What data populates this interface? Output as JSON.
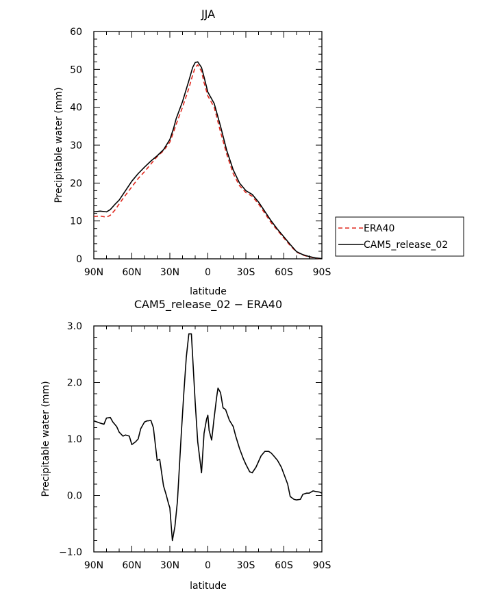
{
  "chart_data": [
    {
      "type": "line",
      "title": "JJA",
      "xlabel": "latitude",
      "ylabel": "Precipitable water (mm)",
      "xlim": [
        -90,
        90
      ],
      "ylim": [
        0,
        60
      ],
      "x_ticks": [
        {
          "value": -90,
          "label": "90N"
        },
        {
          "value": -60,
          "label": "60N"
        },
        {
          "value": -30,
          "label": "30N"
        },
        {
          "value": 0,
          "label": "0"
        },
        {
          "value": 30,
          "label": "30S"
        },
        {
          "value": 60,
          "label": "60S"
        },
        {
          "value": 90,
          "label": "90S"
        }
      ],
      "y_ticks": [
        0,
        10,
        20,
        30,
        40,
        50,
        60
      ],
      "y_tick_labels": [
        "0",
        "10",
        "20",
        "30",
        "40",
        "50",
        "60"
      ],
      "legend_position": "right, outside plot",
      "series": [
        {
          "name": "ERA40",
          "color": "#e0281e",
          "dash": "dashed",
          "x": [
            -90,
            -85,
            -80,
            -77,
            -73,
            -70,
            -65,
            -60,
            -55,
            -50,
            -45,
            -40,
            -35,
            -30,
            -27,
            -25,
            -20,
            -15,
            -12,
            -10,
            -8,
            -5,
            -3,
            0,
            5,
            10,
            15,
            20,
            25,
            30,
            35,
            40,
            45,
            50,
            55,
            60,
            65,
            70,
            75,
            80,
            85,
            90
          ],
          "y": [
            11.2,
            11.3,
            11.0,
            11.5,
            13.0,
            14.5,
            16.8,
            19.0,
            21.2,
            23.0,
            25.0,
            27.0,
            28.5,
            30.8,
            33.5,
            35.5,
            40.0,
            45.0,
            48.5,
            50.5,
            51.2,
            49.5,
            46.5,
            43.0,
            40.0,
            33.5,
            27.5,
            22.5,
            19.3,
            17.5,
            16.5,
            14.5,
            12.0,
            9.5,
            7.5,
            5.5,
            3.5,
            1.8,
            1.0,
            0.5,
            0.2,
            0.0
          ]
        },
        {
          "name": "CAM5_release_02",
          "color": "#000000",
          "dash": "solid",
          "x": [
            -90,
            -85,
            -80,
            -77,
            -73,
            -70,
            -65,
            -60,
            -55,
            -50,
            -45,
            -40,
            -35,
            -30,
            -27,
            -25,
            -20,
            -15,
            -12,
            -10,
            -8,
            -5,
            -3,
            0,
            5,
            10,
            15,
            20,
            25,
            30,
            35,
            40,
            45,
            50,
            55,
            60,
            65,
            70,
            75,
            80,
            85,
            90
          ],
          "y": [
            12.4,
            12.6,
            12.4,
            13.0,
            14.5,
            15.5,
            18.0,
            20.5,
            22.5,
            24.2,
            25.8,
            27.2,
            28.8,
            31.5,
            34.5,
            37.0,
            41.5,
            47.0,
            50.5,
            51.8,
            52.0,
            50.5,
            48.0,
            44.0,
            41.0,
            35.0,
            28.5,
            23.5,
            20.0,
            18.0,
            17.0,
            15.0,
            12.5,
            10.0,
            7.8,
            5.8,
            3.8,
            1.9,
            1.1,
            0.6,
            0.25,
            0.05
          ]
        }
      ]
    },
    {
      "type": "line",
      "title": "CAM5_release_02 − ERA40",
      "xlabel": "latitude",
      "ylabel": "Precipitable water (mm)",
      "xlim": [
        -90,
        90
      ],
      "ylim": [
        -1.0,
        3.0
      ],
      "x_ticks": [
        {
          "value": -90,
          "label": "90N"
        },
        {
          "value": -60,
          "label": "60N"
        },
        {
          "value": -30,
          "label": "30N"
        },
        {
          "value": 0,
          "label": "0"
        },
        {
          "value": 30,
          "label": "30S"
        },
        {
          "value": 60,
          "label": "60S"
        },
        {
          "value": 90,
          "label": "90S"
        }
      ],
      "y_ticks": [
        -1.0,
        0.0,
        1.0,
        2.0,
        3.0
      ],
      "y_tick_labels": [
        "−1.0",
        "0.0",
        "1.0",
        "2.0",
        "3.0"
      ],
      "series": [
        {
          "color": "#000000",
          "dash": "solid",
          "x": [
            -90,
            -85,
            -82,
            -80,
            -77,
            -75,
            -72,
            -70,
            -67,
            -65,
            -62,
            -60,
            -57,
            -55,
            -53,
            -50,
            -48,
            -47,
            -45,
            -43,
            -40,
            -38,
            -35,
            -33,
            -31,
            -30,
            -28,
            -26,
            -24,
            -21,
            -19,
            -17,
            -15,
            -13,
            -10,
            -8,
            -5,
            -3,
            -1,
            0,
            1,
            3,
            5,
            7,
            8,
            10,
            12,
            14,
            17,
            20,
            22,
            25,
            28,
            30,
            33,
            35,
            38,
            40,
            42,
            45,
            48,
            50,
            52,
            55,
            58,
            60,
            63,
            65,
            68,
            70,
            73,
            75,
            78,
            80,
            83,
            85,
            88,
            90
          ],
          "y": [
            1.32,
            1.28,
            1.26,
            1.37,
            1.38,
            1.3,
            1.22,
            1.12,
            1.05,
            1.07,
            1.05,
            0.9,
            0.95,
            1.0,
            1.18,
            1.3,
            1.32,
            1.32,
            1.33,
            1.2,
            0.62,
            0.64,
            0.17,
            0.02,
            -0.15,
            -0.22,
            -0.8,
            -0.55,
            -0.1,
            1.08,
            1.8,
            2.45,
            2.86,
            2.86,
            1.65,
            0.95,
            0.4,
            1.1,
            1.35,
            1.42,
            1.15,
            0.98,
            1.38,
            1.75,
            1.9,
            1.82,
            1.55,
            1.52,
            1.33,
            1.22,
            1.05,
            0.83,
            0.65,
            0.55,
            0.42,
            0.4,
            0.5,
            0.6,
            0.7,
            0.78,
            0.78,
            0.75,
            0.7,
            0.62,
            0.5,
            0.38,
            0.2,
            -0.02,
            -0.07,
            -0.08,
            -0.07,
            0.02,
            0.04,
            0.04,
            0.08,
            0.07,
            0.06,
            0.04
          ]
        }
      ]
    }
  ],
  "legend": [
    {
      "label": "ERA40",
      "color": "#e0281e",
      "dash": "dashed"
    },
    {
      "label": "CAM5_release_02",
      "color": "#000000",
      "dash": "solid"
    }
  ]
}
